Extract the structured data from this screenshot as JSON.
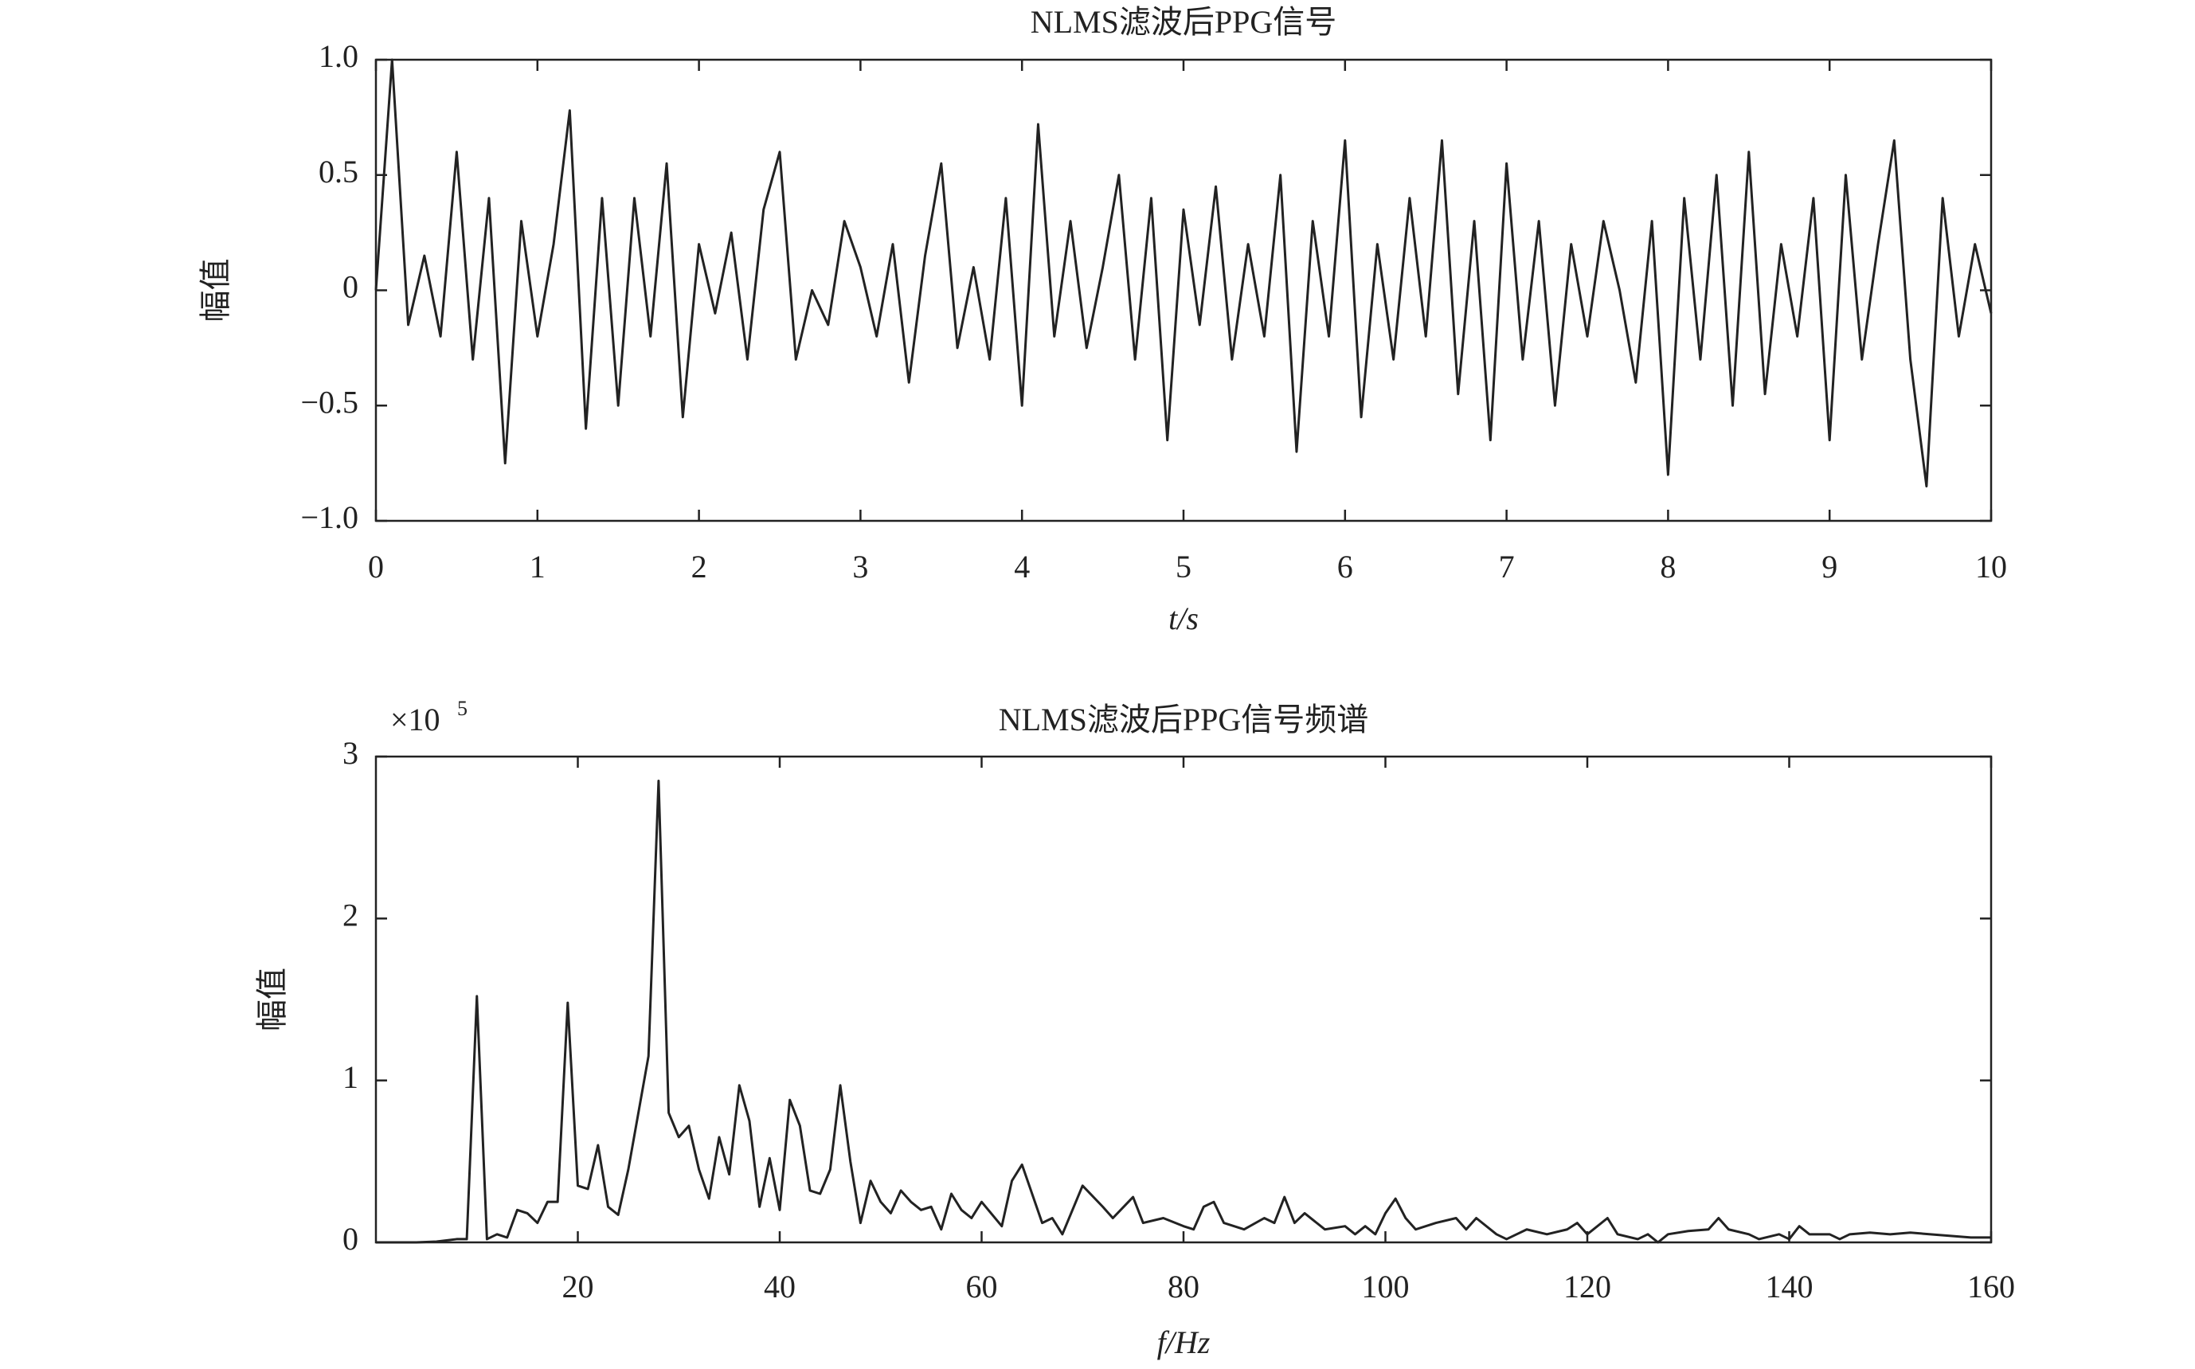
{
  "chart_data": [
    {
      "type": "line",
      "title": "NLMS滤波后PPG信号",
      "xlabel": "t/s",
      "ylabel": "幅值",
      "x": [
        0,
        0.1,
        0.2,
        0.3,
        0.4,
        0.5,
        0.6,
        0.7,
        0.8,
        0.9,
        1,
        1.1,
        1.2,
        1.3,
        1.4,
        1.5,
        1.6,
        1.7,
        1.8,
        1.9,
        2,
        2.1,
        2.2,
        2.3,
        2.4,
        2.5,
        2.6,
        2.7,
        2.8,
        2.9,
        3,
        3.1,
        3.2,
        3.3,
        3.4,
        3.5,
        3.6,
        3.7,
        3.8,
        3.9,
        4,
        4.1,
        4.2,
        4.3,
        4.4,
        4.5,
        4.6,
        4.7,
        4.8,
        4.9,
        5,
        5.1,
        5.2,
        5.3,
        5.4,
        5.5,
        5.6,
        5.7,
        5.8,
        5.9,
        6,
        6.1,
        6.2,
        6.3,
        6.4,
        6.5,
        6.6,
        6.7,
        6.8,
        6.9,
        7,
        7.1,
        7.2,
        7.3,
        7.4,
        7.5,
        7.6,
        7.7,
        7.8,
        7.9,
        8,
        8.1,
        8.2,
        8.3,
        8.4,
        8.5,
        8.6,
        8.7,
        8.8,
        8.9,
        9,
        9.1,
        9.2,
        9.3,
        9.4,
        9.5,
        9.6,
        9.7,
        9.8,
        9.9,
        10
      ],
      "values": [
        0,
        1.0,
        -0.15,
        0.15,
        -0.2,
        0.6,
        -0.3,
        0.4,
        -0.75,
        0.3,
        -0.2,
        0.2,
        0.78,
        -0.6,
        0.4,
        -0.5,
        0.4,
        -0.2,
        0.55,
        -0.55,
        0.2,
        -0.1,
        0.25,
        -0.3,
        0.35,
        0.6,
        -0.3,
        0,
        -0.15,
        0.3,
        0.1,
        -0.2,
        0.2,
        -0.4,
        0.15,
        0.55,
        -0.25,
        0.1,
        -0.3,
        0.4,
        -0.5,
        0.72,
        -0.2,
        0.3,
        -0.25,
        0.1,
        0.5,
        -0.3,
        0.4,
        -0.65,
        0.35,
        -0.15,
        0.45,
        -0.3,
        0.2,
        -0.2,
        0.5,
        -0.7,
        0.3,
        -0.2,
        0.65,
        -0.55,
        0.2,
        -0.3,
        0.4,
        -0.2,
        0.65,
        -0.45,
        0.3,
        -0.65,
        0.55,
        -0.3,
        0.3,
        -0.5,
        0.2,
        -0.2,
        0.3,
        0,
        -0.4,
        0.3,
        -0.8,
        0.4,
        -0.3,
        0.5,
        -0.5,
        0.6,
        -0.45,
        0.2,
        -0.2,
        0.4,
        -0.65,
        0.5,
        -0.3,
        0.2,
        0.65,
        -0.3,
        -0.85,
        0.4,
        -0.2,
        0.2,
        -0.1
      ],
      "color": "#222222",
      "xlim": [
        0,
        10
      ],
      "xticks": [
        0,
        1,
        2,
        3,
        4,
        5,
        6,
        7,
        8,
        9,
        10
      ],
      "ylim": [
        -1,
        1
      ],
      "yticks": [
        {
          "value": -1,
          "label": "−1.0"
        },
        {
          "value": -0.5,
          "label": "−0.5"
        },
        0,
        0.5,
        {
          "value": 1,
          "label": "1.0"
        }
      ],
      "grid": false
    },
    {
      "type": "line",
      "title": "NLMS滤波后PPG信号频谱",
      "xlabel": "f/Hz",
      "ylabel": "幅值",
      "y_scale_label": "×10",
      "y_scale_exponent": "5",
      "x": [
        0,
        2,
        4,
        6,
        8,
        9,
        10,
        11,
        12,
        13,
        14,
        15,
        16,
        17,
        18,
        19,
        20,
        21,
        22,
        23,
        24,
        25,
        26,
        27,
        28,
        29,
        30,
        31,
        32,
        33,
        34,
        35,
        36,
        37,
        38,
        39,
        40,
        41,
        42,
        43,
        44,
        45,
        46,
        47,
        48,
        49,
        50,
        51,
        52,
        53,
        54,
        55,
        56,
        57,
        58,
        59,
        60,
        62,
        63,
        64,
        65,
        66,
        67,
        68,
        70,
        72,
        73,
        75,
        76,
        78,
        80,
        81,
        82,
        83,
        84,
        86,
        88,
        89,
        90,
        91,
        92,
        94,
        96,
        97,
        98,
        99,
        100,
        101,
        102,
        103,
        105,
        107,
        108,
        109,
        111,
        112,
        114,
        116,
        118,
        119,
        120,
        122,
        123,
        125,
        126,
        127,
        128,
        130,
        132,
        133,
        134,
        136,
        137,
        139,
        140,
        141,
        142,
        144,
        145,
        146,
        148,
        150,
        152,
        154,
        156,
        158,
        160
      ],
      "values": [
        0,
        0,
        0,
        0.005,
        0.02,
        0.02,
        1.52,
        0.02,
        0.05,
        0.03,
        0.2,
        0.18,
        0.12,
        0.25,
        0.25,
        1.48,
        0.35,
        0.33,
        0.6,
        0.22,
        0.17,
        0.45,
        0.8,
        1.15,
        2.85,
        0.8,
        0.65,
        0.72,
        0.45,
        0.27,
        0.65,
        0.42,
        0.97,
        0.75,
        0.22,
        0.52,
        0.2,
        0.88,
        0.72,
        0.32,
        0.3,
        0.45,
        0.97,
        0.5,
        0.12,
        0.38,
        0.25,
        0.18,
        0.32,
        0.25,
        0.2,
        0.22,
        0.08,
        0.3,
        0.2,
        0.15,
        0.25,
        0.1,
        0.38,
        0.48,
        0.3,
        0.12,
        0.15,
        0.05,
        0.35,
        0.22,
        0.15,
        0.28,
        0.12,
        0.15,
        0.1,
        0.08,
        0.22,
        0.25,
        0.12,
        0.08,
        0.15,
        0.12,
        0.28,
        0.12,
        0.18,
        0.08,
        0.1,
        0.05,
        0.1,
        0.05,
        0.18,
        0.27,
        0.15,
        0.08,
        0.12,
        0.15,
        0.08,
        0.15,
        0.05,
        0.02,
        0.08,
        0.05,
        0.08,
        0.12,
        0.05,
        0.15,
        0.05,
        0.02,
        0.05,
        0,
        0.05,
        0.07,
        0.08,
        0.15,
        0.08,
        0.05,
        0.02,
        0.05,
        0.02,
        0.1,
        0.05,
        0.05,
        0.02,
        0.05,
        0.06,
        0.05,
        0.06,
        0.05,
        0.04,
        0.03,
        0.03
      ],
      "color": "#222222",
      "xlim": [
        0,
        160
      ],
      "xticks": [
        20,
        40,
        60,
        80,
        100,
        120,
        140,
        160
      ],
      "ylim": [
        0,
        3
      ],
      "yticks": [
        0,
        1,
        2,
        3
      ],
      "grid": false
    }
  ]
}
